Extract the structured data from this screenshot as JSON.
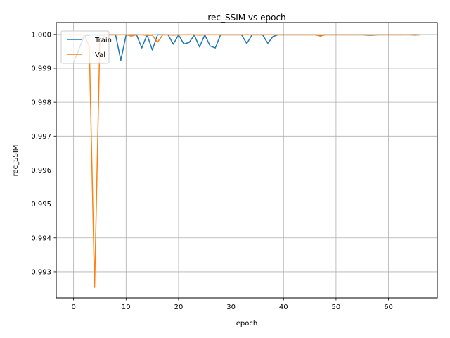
{
  "chart_data": {
    "type": "line",
    "title": "rec_SSIM vs epoch",
    "xlabel": "epoch",
    "ylabel": "rec_SSIM",
    "xlim": [
      -3.3,
      69.3
    ],
    "ylim": [
      0.99223,
      1.00035
    ],
    "xticks": [
      0,
      10,
      20,
      30,
      40,
      50,
      60
    ],
    "yticks": [
      0.993,
      0.994,
      0.995,
      0.996,
      0.997,
      0.998,
      0.999,
      1.0
    ],
    "ytick_labels": [
      "0.993",
      "0.994",
      "0.995",
      "0.996",
      "0.997",
      "0.998",
      "0.999",
      "1.000"
    ],
    "grid": true,
    "legend_position": "top-left",
    "series": [
      {
        "name": "Train",
        "color": "#1f77b4",
        "x": [
          0,
          1,
          2,
          3,
          4,
          5,
          6,
          7,
          8,
          9,
          10,
          11,
          12,
          13,
          14,
          15,
          16,
          17,
          18,
          19,
          20,
          21,
          22,
          23,
          24,
          25,
          26,
          27,
          28,
          29,
          30,
          31,
          32,
          33,
          34,
          35,
          36,
          37,
          38,
          39,
          40,
          41,
          42,
          43,
          44,
          45,
          46,
          47,
          48,
          49,
          50,
          51,
          52,
          53,
          54,
          55,
          56,
          57,
          58,
          59,
          60,
          61,
          62,
          63,
          64,
          65,
          66
        ],
        "values": [
          0.99917,
          0.99955,
          0.99995,
          0.99998,
          0.99999,
          0.99998,
          0.99999,
          0.99999,
          0.99999,
          0.99924,
          0.99998,
          0.99999,
          0.99999,
          0.9996,
          0.99999,
          0.99954,
          0.99999,
          0.99999,
          0.99999,
          0.99971,
          0.99999,
          0.99972,
          0.99976,
          0.99998,
          0.99963,
          0.99999,
          0.99966,
          0.9996,
          0.99999,
          0.99999,
          0.99999,
          0.99999,
          0.99999,
          0.99973,
          0.99999,
          0.99999,
          0.99999,
          0.99974,
          0.99994,
          0.99999,
          0.99999,
          0.99999,
          0.99999,
          0.99999,
          0.99999,
          0.99999,
          0.99999,
          0.99997,
          0.99999,
          0.99999,
          0.99999,
          0.99999,
          0.99999,
          0.99999,
          0.99999,
          0.99999,
          0.99998,
          0.99998,
          0.99999,
          0.99999,
          0.99999,
          0.99999,
          0.99999,
          0.99999,
          0.99999,
          0.99999,
          0.99999
        ]
      },
      {
        "name": "Val",
        "color": "#ff7f0e",
        "x": [
          0,
          1,
          2,
          3,
          4,
          5,
          6,
          7,
          8,
          9,
          10,
          11,
          12,
          13,
          14,
          15,
          16,
          17,
          18,
          19,
          20,
          21,
          22,
          23,
          24,
          25,
          26,
          27,
          28,
          29,
          30,
          31,
          32,
          33,
          34,
          35,
          36,
          37,
          38,
          39,
          40,
          41,
          42,
          43,
          44,
          45,
          46,
          47,
          48,
          49,
          50,
          51,
          52,
          53,
          54,
          55,
          56,
          57,
          58,
          59,
          60,
          61,
          62,
          63,
          64,
          65,
          66
        ],
        "values": [
          0.99999,
          0.99999,
          0.99999,
          0.99965,
          0.99254,
          0.99978,
          0.99999,
          0.99999,
          0.99999,
          0.99999,
          0.99999,
          0.99995,
          0.99999,
          0.99999,
          0.99997,
          0.99998,
          0.99977,
          0.99999,
          0.99999,
          0.99998,
          0.99999,
          0.99999,
          0.99999,
          0.99999,
          0.99998,
          0.99999,
          0.99999,
          0.99999,
          0.99999,
          0.99999,
          0.99999,
          0.99999,
          0.99999,
          0.99999,
          0.99999,
          0.99999,
          0.99999,
          0.99999,
          0.99999,
          0.99999,
          0.99999,
          0.99999,
          0.99999,
          0.99999,
          0.99999,
          0.99999,
          0.99999,
          0.99995,
          0.99999,
          0.99999,
          0.99999,
          0.99999,
          0.99999,
          0.99999,
          0.99999,
          0.99999,
          0.99999,
          0.99999,
          0.99999,
          0.99999,
          0.99999,
          0.99999,
          0.99999,
          0.99999,
          0.99999,
          0.99998,
          0.99999
        ]
      }
    ]
  }
}
